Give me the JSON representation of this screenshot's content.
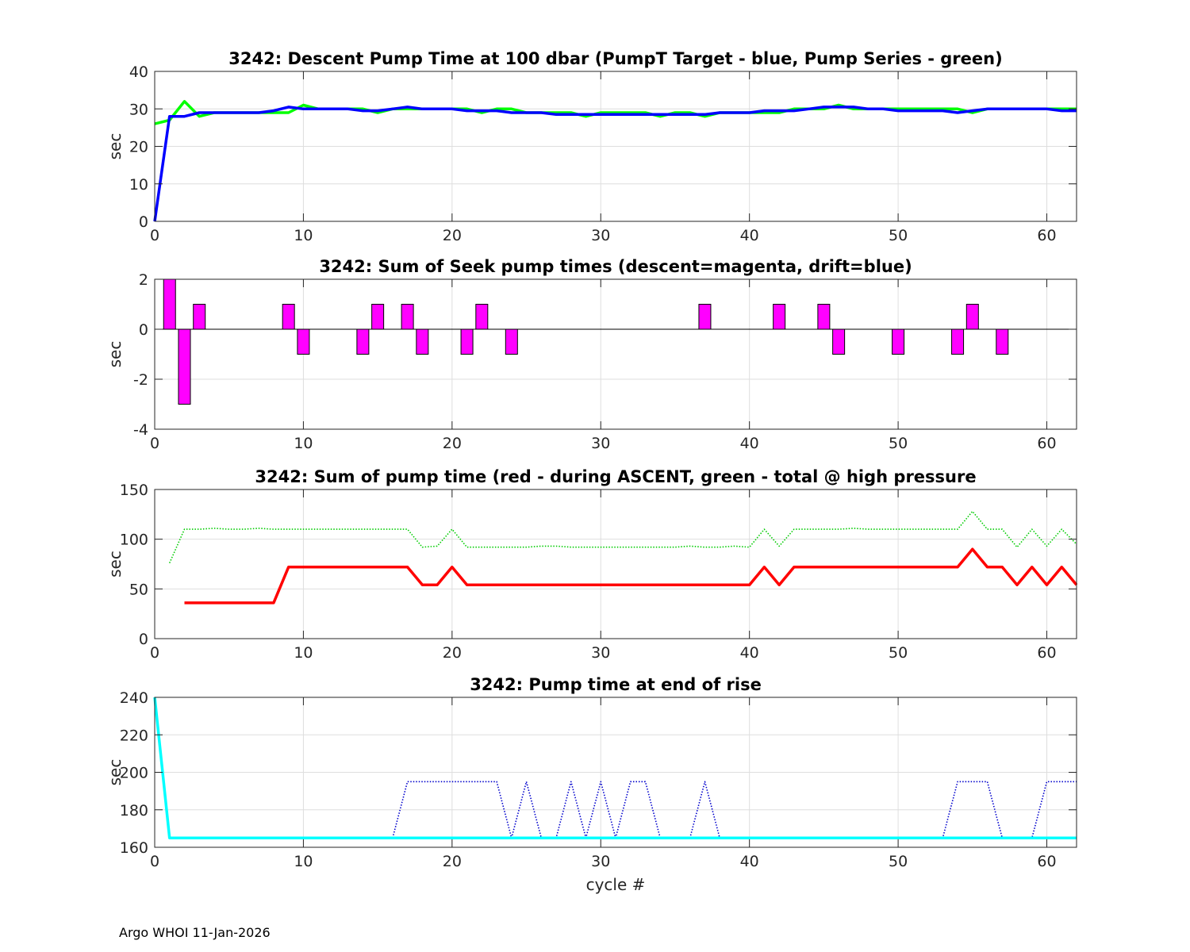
{
  "footer": "Argo WHOI 11-Jan-2026",
  "chart_data": [
    {
      "type": "line",
      "title": "3242: Descent Pump Time at 100 dbar (PumpT Target - blue, Pump Series - green)",
      "xlabel": "",
      "ylabel": "sec",
      "xlim": [
        0,
        62
      ],
      "ylim": [
        0,
        40
      ],
      "xticks": [
        0,
        10,
        20,
        30,
        40,
        50,
        60
      ],
      "yticks": [
        0,
        10,
        20,
        30,
        40
      ],
      "grid": true,
      "series": [
        {
          "color": "#00ff00",
          "style": "solid",
          "x": [
            0,
            1,
            2,
            3,
            4,
            5,
            6,
            7,
            8,
            9,
            10,
            11,
            12,
            13,
            14,
            15,
            16,
            17,
            18,
            19,
            20,
            21,
            22,
            23,
            24,
            25,
            26,
            27,
            28,
            29,
            30,
            31,
            32,
            33,
            34,
            35,
            36,
            37,
            38,
            39,
            40,
            41,
            42,
            43,
            44,
            45,
            46,
            47,
            48,
            49,
            50,
            51,
            52,
            53,
            54,
            55,
            56,
            57,
            58,
            59,
            60,
            61,
            62
          ],
          "values": [
            26,
            27,
            32,
            28,
            29,
            29,
            29,
            29,
            29,
            29,
            31,
            30,
            30,
            30,
            30,
            29,
            30,
            30,
            30,
            30,
            30,
            30,
            29,
            30,
            30,
            29,
            29,
            29,
            29,
            28,
            29,
            29,
            29,
            29,
            28,
            29,
            29,
            28,
            29,
            29,
            29,
            29,
            29,
            30,
            30,
            30,
            31,
            30,
            30,
            30,
            30,
            30,
            30,
            30,
            30,
            29,
            30,
            30,
            30,
            30,
            30,
            30,
            30
          ]
        },
        {
          "color": "#0000ff",
          "style": "solid",
          "x": [
            0,
            1,
            2,
            3,
            4,
            5,
            6,
            7,
            8,
            9,
            10,
            11,
            12,
            13,
            14,
            15,
            16,
            17,
            18,
            19,
            20,
            21,
            22,
            23,
            24,
            25,
            26,
            27,
            28,
            29,
            30,
            31,
            32,
            33,
            34,
            35,
            36,
            37,
            38,
            39,
            40,
            41,
            42,
            43,
            44,
            45,
            46,
            47,
            48,
            49,
            50,
            51,
            52,
            53,
            54,
            55,
            56,
            57,
            58,
            59,
            60,
            61,
            62
          ],
          "values": [
            0,
            28,
            28,
            29,
            29,
            29,
            29,
            29,
            29.5,
            30.5,
            30,
            30,
            30,
            30,
            29.5,
            29.5,
            30,
            30.5,
            30,
            30,
            30,
            29.5,
            29.5,
            29.5,
            29,
            29,
            29,
            28.5,
            28.5,
            28.5,
            28.5,
            28.5,
            28.5,
            28.5,
            28.5,
            28.5,
            28.5,
            28.5,
            29,
            29,
            29,
            29.5,
            29.5,
            29.5,
            30,
            30.5,
            30.5,
            30.5,
            30,
            30,
            29.5,
            29.5,
            29.5,
            29.5,
            29,
            29.5,
            30,
            30,
            30,
            30,
            30,
            29.5,
            29.5
          ]
        }
      ]
    },
    {
      "type": "bar",
      "title": "3242: Sum of Seek pump times (descent=magenta, drift=blue)",
      "xlabel": "",
      "ylabel": "sec",
      "xlim": [
        0,
        62
      ],
      "ylim": [
        -4,
        2
      ],
      "xticks": [
        0,
        10,
        20,
        30,
        40,
        50,
        60
      ],
      "yticks": [
        -4,
        -2,
        0,
        2
      ],
      "grid": true,
      "series": [
        {
          "color": "#ff00ff",
          "x": [
            1,
            2,
            3,
            9,
            10,
            14,
            15,
            17,
            18,
            21,
            22,
            24,
            37,
            42,
            45,
            46,
            50,
            54,
            55,
            57
          ],
          "values": [
            2,
            -3,
            1,
            1,
            -1,
            -1,
            1,
            1,
            -1,
            -1,
            1,
            -1,
            1,
            1,
            1,
            -1,
            -1,
            -1,
            1,
            -1
          ]
        }
      ]
    },
    {
      "type": "line",
      "title": "3242: Sum of pump time (red - during ASCENT, green - total @ high pressure",
      "xlabel": "",
      "ylabel": "sec",
      "xlim": [
        0,
        62
      ],
      "ylim": [
        0,
        150
      ],
      "xticks": [
        0,
        10,
        20,
        30,
        40,
        50,
        60
      ],
      "yticks": [
        0,
        50,
        100,
        150
      ],
      "grid": true,
      "series": [
        {
          "color": "#ff0000",
          "style": "solid",
          "x": [
            2,
            3,
            4,
            5,
            6,
            7,
            8,
            9,
            10,
            11,
            12,
            13,
            14,
            15,
            16,
            17,
            18,
            19,
            20,
            21,
            22,
            23,
            24,
            25,
            26,
            27,
            28,
            29,
            30,
            31,
            32,
            33,
            34,
            35,
            36,
            37,
            38,
            39,
            40,
            41,
            42,
            43,
            44,
            45,
            46,
            47,
            48,
            49,
            50,
            51,
            52,
            53,
            54,
            55,
            56,
            57,
            58,
            59,
            60,
            61,
            62
          ],
          "values": [
            36,
            36,
            36,
            36,
            36,
            36,
            36,
            72,
            72,
            72,
            72,
            72,
            72,
            72,
            72,
            72,
            54,
            54,
            72,
            54,
            54,
            54,
            54,
            54,
            54,
            54,
            54,
            54,
            54,
            54,
            54,
            54,
            54,
            54,
            54,
            54,
            54,
            54,
            54,
            72,
            54,
            72,
            72,
            72,
            72,
            72,
            72,
            72,
            72,
            72,
            72,
            72,
            72,
            90,
            72,
            72,
            54,
            72,
            54,
            72,
            54
          ]
        },
        {
          "color": "#00cc00",
          "style": "dotted",
          "x": [
            1,
            2,
            3,
            4,
            5,
            6,
            7,
            8,
            9,
            10,
            11,
            12,
            13,
            14,
            15,
            16,
            17,
            18,
            19,
            20,
            21,
            22,
            23,
            24,
            25,
            26,
            27,
            28,
            29,
            30,
            31,
            32,
            33,
            34,
            35,
            36,
            37,
            38,
            39,
            40,
            41,
            42,
            43,
            44,
            45,
            46,
            47,
            48,
            49,
            50,
            51,
            52,
            53,
            54,
            55,
            56,
            57,
            58,
            59,
            60,
            61,
            62
          ],
          "values": [
            76,
            110,
            110,
            111,
            110,
            110,
            111,
            110,
            110,
            110,
            110,
            110,
            110,
            110,
            110,
            110,
            110,
            92,
            93,
            110,
            92,
            92,
            92,
            92,
            92,
            93,
            93,
            92,
            92,
            92,
            92,
            92,
            92,
            92,
            92,
            93,
            92,
            92,
            93,
            92,
            110,
            93,
            110,
            110,
            110,
            110,
            111,
            110,
            110,
            110,
            110,
            110,
            110,
            110,
            128,
            110,
            110,
            92,
            110,
            93,
            110,
            95
          ]
        }
      ]
    },
    {
      "type": "line",
      "title": "3242: Pump time at end of rise",
      "xlabel": "cycle #",
      "ylabel": "sec",
      "xlim": [
        0,
        62
      ],
      "ylim": [
        160,
        240
      ],
      "xticks": [
        0,
        10,
        20,
        30,
        40,
        50,
        60
      ],
      "yticks": [
        160,
        180,
        200,
        220,
        240
      ],
      "grid": true,
      "series": [
        {
          "color": "#0000cc",
          "style": "dotted",
          "x": [
            16,
            17,
            18,
            19,
            20,
            21,
            22,
            23,
            24,
            25,
            26,
            27,
            28,
            29,
            30,
            31,
            32,
            33,
            34,
            35,
            36,
            37,
            38,
            39,
            40,
            41,
            42,
            43,
            44,
            45,
            46,
            47,
            48,
            49,
            50,
            51,
            52,
            53,
            54,
            55,
            56,
            57,
            58,
            59,
            60,
            61,
            62
          ],
          "values": [
            165,
            195,
            195,
            195,
            195,
            195,
            195,
            195,
            165,
            195,
            165,
            165,
            195,
            165,
            195,
            165,
            195,
            195,
            165,
            165,
            165,
            195,
            165,
            165,
            165,
            165,
            165,
            165,
            165,
            165,
            165,
            165,
            165,
            165,
            165,
            165,
            165,
            165,
            195,
            195,
            195,
            165,
            165,
            165,
            195,
            195,
            195
          ]
        },
        {
          "color": "#00ffff",
          "style": "solid",
          "x": [
            0,
            1,
            2,
            10,
            20,
            30,
            40,
            50,
            60,
            62
          ],
          "values": [
            240,
            165,
            165,
            165,
            165,
            165,
            165,
            165,
            165,
            165
          ]
        }
      ]
    }
  ]
}
